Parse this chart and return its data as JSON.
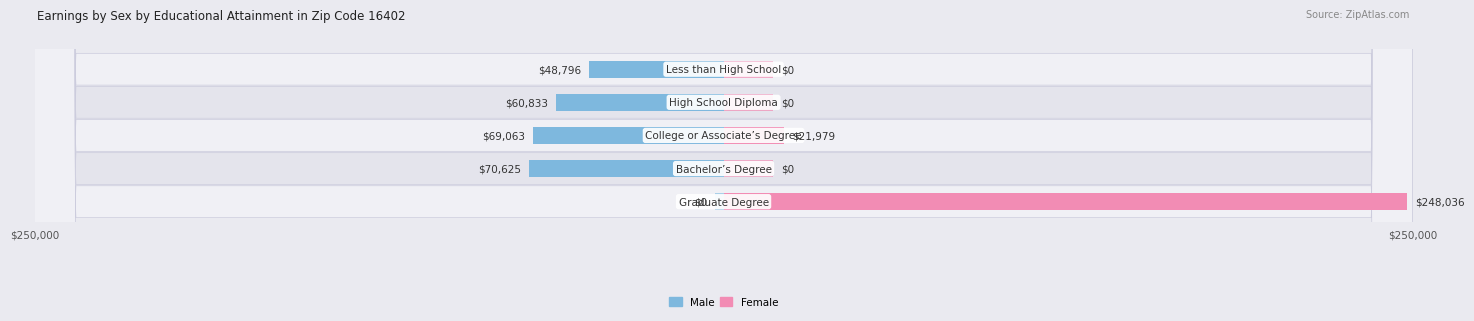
{
  "title": "Earnings by Sex by Educational Attainment in Zip Code 16402",
  "source": "Source: ZipAtlas.com",
  "categories": [
    "Less than High School",
    "High School Diploma",
    "College or Associate’s Degree",
    "Bachelor’s Degree",
    "Graduate Degree"
  ],
  "male_values": [
    48796,
    60833,
    69063,
    70625,
    0
  ],
  "female_values": [
    0,
    0,
    21979,
    0,
    248036
  ],
  "male_color": "#7eb8de",
  "female_color": "#f28cb4",
  "male_grad_color": "#aacfe8",
  "axis_max": 250000,
  "bar_height": 0.52,
  "bg_color": "#eaeaf0",
  "row_colors": [
    "#f0f0f5",
    "#e4e4ec"
  ],
  "label_fontsize": 7.5,
  "title_fontsize": 8.5,
  "source_fontsize": 7,
  "tick_fontsize": 7.5
}
